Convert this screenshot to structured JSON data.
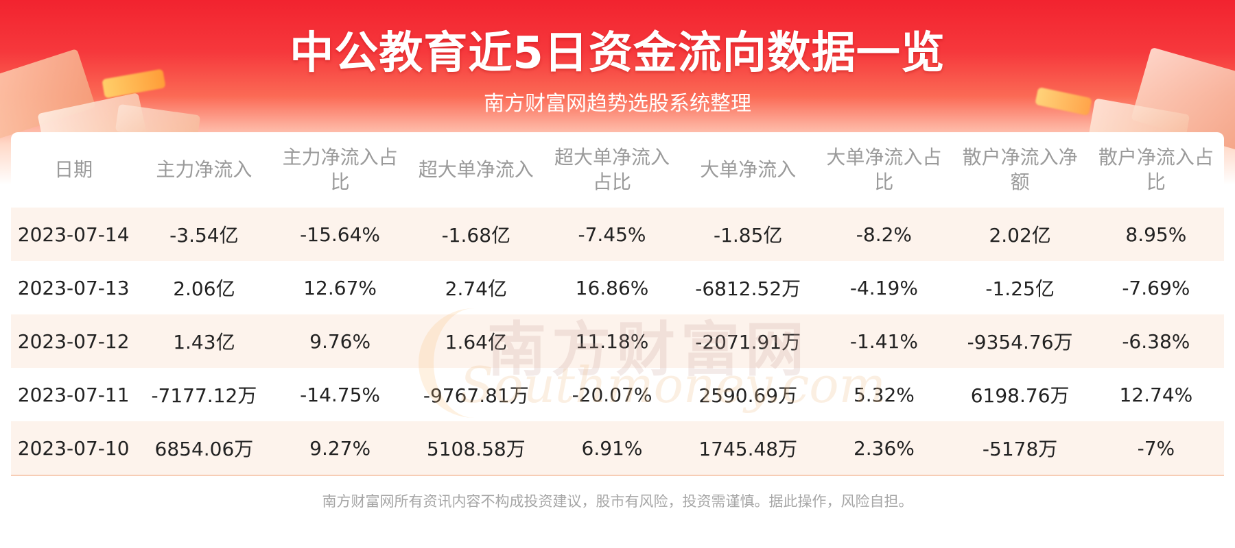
{
  "header": {
    "title": "中公教育近5日资金流向数据一览",
    "subtitle": "南方财富网趋势选股系统整理"
  },
  "table": {
    "columns": [
      "日期",
      "主力净流入",
      "主力净流入占比",
      "超大单净流入",
      "超大单净流入占比",
      "大单净流入",
      "大单净流入占比",
      "散户净流入净额",
      "散户净流入占比"
    ],
    "rows": [
      [
        "2023-07-14",
        "-3.54亿",
        "-15.64%",
        "-1.68亿",
        "-7.45%",
        "-1.85亿",
        "-8.2%",
        "2.02亿",
        "8.95%"
      ],
      [
        "2023-07-13",
        "2.06亿",
        "12.67%",
        "2.74亿",
        "16.86%",
        "-6812.52万",
        "-4.19%",
        "-1.25亿",
        "-7.69%"
      ],
      [
        "2023-07-12",
        "1.43亿",
        "9.76%",
        "1.64亿",
        "11.18%",
        "-2071.91万",
        "-1.41%",
        "-9354.76万",
        "-6.38%"
      ],
      [
        "2023-07-11",
        "-7177.12万",
        "-14.75%",
        "-9767.81万",
        "-20.07%",
        "2590.69万",
        "5.32%",
        "6198.76万",
        "12.74%"
      ],
      [
        "2023-07-10",
        "6854.06万",
        "9.27%",
        "5108.58万",
        "6.91%",
        "1745.48万",
        "2.36%",
        "-5178万",
        "-7%"
      ]
    ]
  },
  "watermark": {
    "cn": "南方财富网",
    "en": "Southmoney.com"
  },
  "footer": {
    "disclaimer": "南方财富网所有资讯内容不构成投资建议，股市有风险，投资需谨慎。据此操作，风险自担。"
  },
  "colors": {
    "brand_red": "#f2232f",
    "row_stripe": "#fdf3ec",
    "header_text": "#9a9a9a"
  }
}
